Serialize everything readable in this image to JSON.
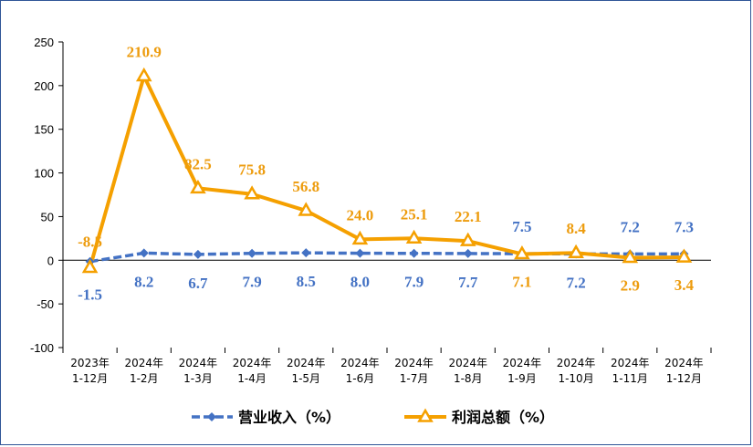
{
  "chart_data": {
    "type": "line",
    "title": "",
    "xlabel": "",
    "ylabel": "",
    "categories": [
      [
        "2023年",
        "1-12月"
      ],
      [
        "2024年",
        "1-2月"
      ],
      [
        "2024年",
        "1-3月"
      ],
      [
        "2024年",
        "1-4月"
      ],
      [
        "2024年",
        "1-5月"
      ],
      [
        "2024年",
        "1-6月"
      ],
      [
        "2024年",
        "1-7月"
      ],
      [
        "2024年",
        "1-8月"
      ],
      [
        "2024年",
        "1-9月"
      ],
      [
        "2024年",
        "1-10月"
      ],
      [
        "2024年",
        "1-11月"
      ],
      [
        "2024年",
        "1-12月"
      ]
    ],
    "ylim": [
      -100,
      250
    ],
    "yticks": [
      -100,
      -50,
      0,
      50,
      100,
      150,
      200,
      250
    ],
    "grid": false,
    "legend_position": "bottom",
    "series": [
      {
        "name": "营业收入（%）",
        "color": "#4472c4",
        "marker": "diamond",
        "line_style": "dashed",
        "values": [
          -1.5,
          8.2,
          6.7,
          7.9,
          8.5,
          8.0,
          7.9,
          7.7,
          7.5,
          7.2,
          7.2,
          7.3
        ],
        "labels": [
          "-1.5",
          "8.2",
          "6.7",
          "7.9",
          "8.5",
          "8.0",
          "7.9",
          "7.7",
          "7.5",
          "7.2",
          "7.2",
          "7.3"
        ]
      },
      {
        "name": "利润总额（%）",
        "color": "#f5a000",
        "marker": "triangle",
        "line_style": "solid",
        "values": [
          -8.5,
          210.9,
          82.5,
          75.8,
          56.8,
          24.0,
          25.1,
          22.1,
          7.1,
          8.4,
          2.9,
          3.4
        ],
        "labels": [
          "-8.5",
          "210.9",
          "82.5",
          "75.8",
          "56.8",
          "24.0",
          "25.1",
          "22.1",
          "7.1",
          "8.4",
          "2.9",
          "3.4"
        ]
      }
    ]
  }
}
